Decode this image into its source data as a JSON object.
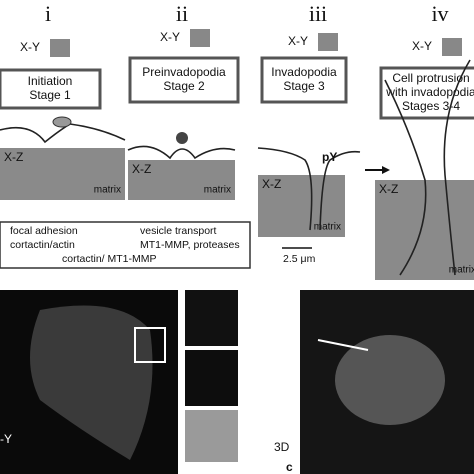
{
  "stages": [
    {
      "numeral": "i",
      "xy_label": "X-Y",
      "title": [
        "Initiation",
        "Stage 1"
      ],
      "xz_label": "X-Z",
      "matrix_label": "matrix"
    },
    {
      "numeral": "ii",
      "xy_label": "X-Y",
      "title": [
        "Preinvadopodia",
        "Stage 2"
      ],
      "xz_label": "X-Z",
      "matrix_label": "matrix"
    },
    {
      "numeral": "iii",
      "xy_label": "X-Y",
      "title": [
        "Invadopodia",
        "Stage 3"
      ],
      "xz_label": "X-Z",
      "matrix_label": "matrix"
    },
    {
      "numeral": "iv",
      "xy_label": "X-Y",
      "title": [
        "Cell protrusion",
        "with invadopodia",
        "Stages 3-4"
      ],
      "xz_label": "X-Z",
      "matrix_label": "matrix"
    }
  ],
  "annotation": "pY",
  "legend": [
    "focal adhesion",
    "cortactin/actin",
    "cortactin/ MT1-MMP",
    "vesicle transport",
    "MT1-MMP, proteases"
  ],
  "scale_bar": "2.5 μm",
  "bottom": {
    "left_label": "-Y",
    "right_label": "3D",
    "panel_letter": "c"
  }
}
